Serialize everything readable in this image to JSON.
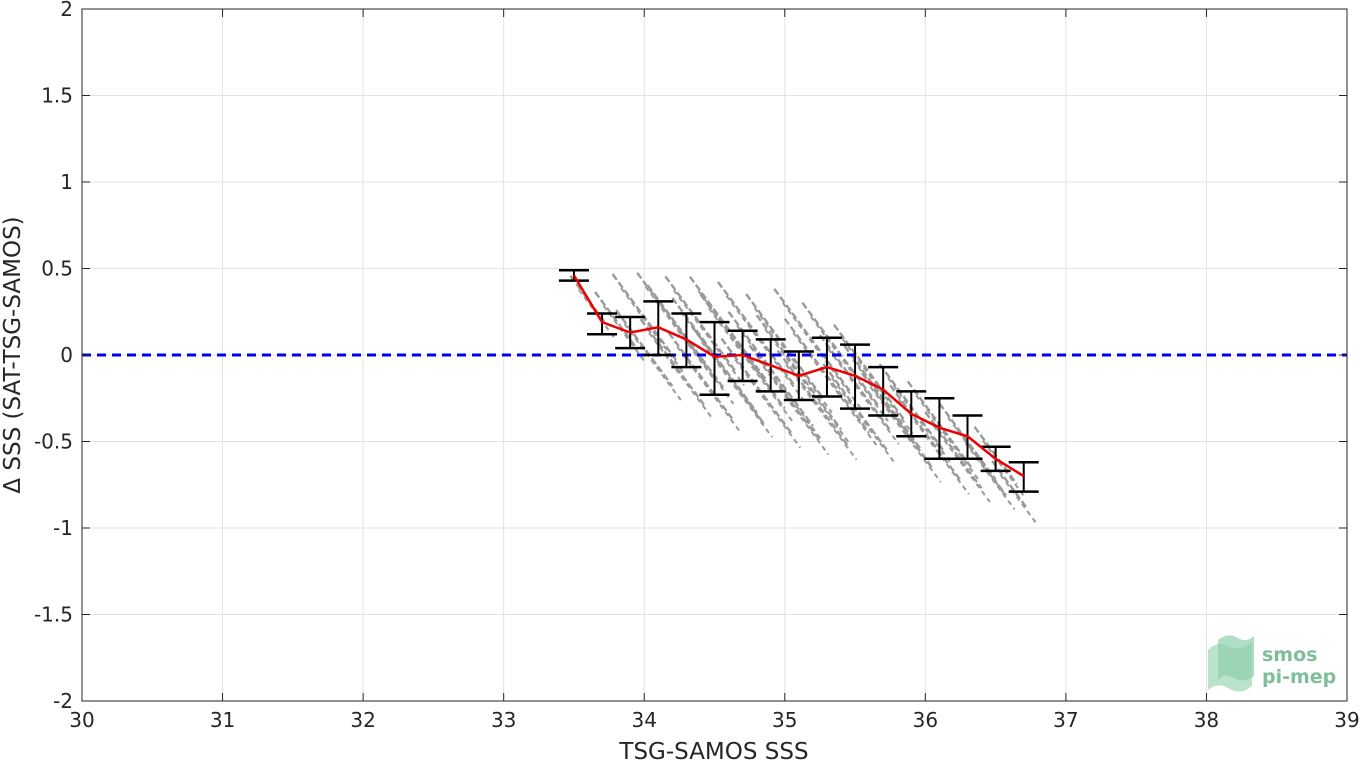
{
  "chart_data": {
    "type": "scatter",
    "xlabel": "TSG-SAMOS SSS",
    "ylabel": "Δ SSS (SAT-TSG-SAMOS)",
    "xlim": [
      30,
      39
    ],
    "ylim": [
      -2,
      2
    ],
    "xticks": [
      30,
      31,
      32,
      33,
      34,
      35,
      36,
      37,
      38,
      39
    ],
    "yticks": [
      -2,
      -1.5,
      -1,
      -0.5,
      0,
      0.5,
      1,
      1.5,
      2
    ],
    "ytick_labels": [
      "-2",
      "-1.5",
      "-1",
      "-0.5",
      "0",
      "0.5",
      "1",
      "1.5",
      "2"
    ],
    "grid": true,
    "reference_line": {
      "y": 0,
      "style": "dashed",
      "color": "#0000ee"
    },
    "scatter_color": "#9a9a9a",
    "mean_line_color": "#ee0000",
    "errorbar_color": "#000000",
    "binned": {
      "x": [
        33.5,
        33.7,
        33.9,
        34.1,
        34.3,
        34.5,
        34.7,
        34.9,
        35.1,
        35.3,
        35.5,
        35.7,
        35.9,
        36.1,
        36.3,
        36.5,
        36.7
      ],
      "mean": [
        0.46,
        0.19,
        0.13,
        0.16,
        0.09,
        -0.01,
        0.0,
        -0.06,
        -0.12,
        -0.07,
        -0.12,
        -0.2,
        -0.34,
        -0.42,
        -0.47,
        -0.6,
        -0.7
      ],
      "lower": [
        0.43,
        0.12,
        0.04,
        0.0,
        -0.07,
        -0.23,
        -0.15,
        -0.21,
        -0.26,
        -0.24,
        -0.31,
        -0.35,
        -0.47,
        -0.6,
        -0.6,
        -0.67,
        -0.79
      ],
      "upper": [
        0.49,
        0.24,
        0.22,
        0.31,
        0.24,
        0.19,
        0.14,
        0.09,
        0.02,
        0.1,
        0.06,
        -0.07,
        -0.21,
        -0.25,
        -0.35,
        -0.53,
        -0.62
      ]
    },
    "samples": {
      "x": [
        33.6,
        33.8,
        34.0,
        34.0,
        34.2,
        34.2,
        34.3,
        34.4,
        34.4,
        34.5,
        34.6,
        34.6,
        34.7,
        34.8,
        34.8,
        34.9,
        35.0,
        35.0,
        35.1,
        35.2,
        35.2,
        35.3,
        35.4,
        35.5,
        35.5,
        35.6,
        35.7,
        35.8,
        35.9,
        36.0,
        36.1,
        36.2,
        36.3,
        36.4,
        36.5,
        36.6
      ],
      "y": [
        0.32,
        0.2,
        0.22,
        0.04,
        0.2,
        -0.04,
        0.1,
        0.18,
        -0.12,
        0.0,
        0.15,
        -0.12,
        0.02,
        0.12,
        -0.18,
        -0.08,
        0.05,
        -0.22,
        -0.1,
        0.08,
        -0.25,
        -0.12,
        0.0,
        -0.16,
        -0.3,
        -0.1,
        -0.25,
        -0.38,
        -0.3,
        -0.45,
        -0.4,
        -0.55,
        -0.5,
        -0.62,
        -0.58,
        -0.75
      ],
      "len": [
        0.25,
        0.3,
        0.45,
        0.4,
        0.5,
        0.45,
        0.55,
        0.5,
        0.45,
        0.6,
        0.55,
        0.5,
        0.6,
        0.55,
        0.5,
        0.6,
        0.55,
        0.5,
        0.6,
        0.55,
        0.5,
        0.6,
        0.55,
        0.5,
        0.45,
        0.5,
        0.55,
        0.5,
        0.45,
        0.5,
        0.45,
        0.4,
        0.4,
        0.35,
        0.3,
        0.25
      ]
    }
  },
  "logo": {
    "line1": "smos",
    "line2": "pi-mep",
    "color": "#7dbf9a"
  }
}
